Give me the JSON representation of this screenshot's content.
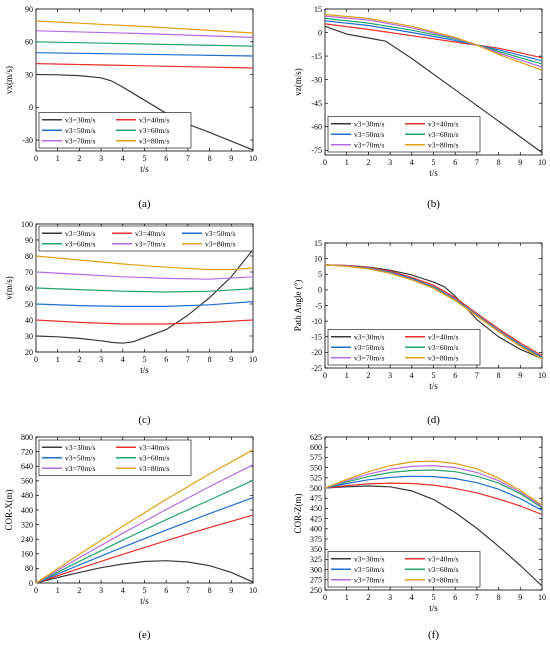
{
  "colors": {
    "v3=30m/s": "#3a3a3a",
    "v3=40m/s": "#e8312a",
    "v3=50m/s": "#1f6fd1",
    "v3=60m/s": "#22a36b",
    "v3=70m/s": "#b56be0",
    "v3=80m/s": "#e0a012"
  },
  "chart_data": [
    {
      "panel": "(a)",
      "type": "line",
      "xlabel": "t/s",
      "ylabel": "vx(m/s)",
      "xlim": [
        0,
        10
      ],
      "ylim": [
        -40,
        90
      ],
      "xticks": [
        0,
        1,
        2,
        3,
        4,
        5,
        6,
        7,
        8,
        9,
        10
      ],
      "yticks": [
        -30,
        0,
        30,
        60,
        90
      ],
      "legend_cols": 2,
      "legend_loc": "bottom-left",
      "series": [
        {
          "name": "v3=30m/s",
          "x": [
            0,
            1,
            2,
            3,
            3.5,
            4,
            5,
            6,
            7,
            8,
            9,
            10
          ],
          "y": [
            30,
            29.8,
            29,
            27,
            24,
            18.5,
            6.5,
            -5.5,
            -15.5,
            -23,
            -31,
            -39
          ]
        },
        {
          "name": "v3=40m/s",
          "x": [
            0,
            5,
            10
          ],
          "y": [
            40,
            38,
            36
          ]
        },
        {
          "name": "v3=50m/s",
          "x": [
            0,
            5,
            10
          ],
          "y": [
            50,
            48.5,
            47
          ]
        },
        {
          "name": "v3=60m/s",
          "x": [
            0,
            5,
            10
          ],
          "y": [
            60,
            58,
            56
          ]
        },
        {
          "name": "v3=70m/s",
          "x": [
            0,
            5,
            10
          ],
          "y": [
            70,
            67.5,
            64
          ]
        },
        {
          "name": "v3=80m/s",
          "x": [
            0,
            5,
            10
          ],
          "y": [
            79,
            74,
            68
          ]
        }
      ]
    },
    {
      "panel": "(b)",
      "type": "line",
      "xlabel": "t/s",
      "ylabel": "vz(m/s)",
      "xlim": [
        0,
        10
      ],
      "ylim": [
        -78,
        15
      ],
      "xticks": [
        0,
        1,
        2,
        3,
        4,
        5,
        6,
        7,
        8,
        9,
        10
      ],
      "yticks": [
        -75,
        -60,
        -45,
        -30,
        -15,
        0,
        15
      ],
      "legend_cols": 2,
      "legend_loc": "bottom-left",
      "series": [
        {
          "name": "v3=30m/s",
          "x": [
            0,
            1,
            2,
            2.8,
            4,
            6,
            8,
            10
          ],
          "y": [
            4,
            -1,
            -3.5,
            -5.5,
            -16.5,
            -36.5,
            -56.5,
            -76.5
          ]
        },
        {
          "name": "v3=40m/s",
          "x": [
            0,
            2,
            4,
            6,
            7,
            8,
            10
          ],
          "y": [
            5.5,
            2,
            -2,
            -6,
            -8,
            -10,
            -16
          ]
        },
        {
          "name": "v3=50m/s",
          "x": [
            0,
            2,
            4,
            6,
            7,
            8,
            10
          ],
          "y": [
            7.5,
            4.5,
            0,
            -5,
            -8,
            -11,
            -18
          ]
        },
        {
          "name": "v3=60m/s",
          "x": [
            0,
            2,
            4,
            6,
            7,
            8,
            10
          ],
          "y": [
            9,
            6,
            1.5,
            -4,
            -8,
            -12,
            -20
          ]
        },
        {
          "name": "v3=70m/s",
          "x": [
            0,
            2,
            4,
            6,
            7,
            8,
            10
          ],
          "y": [
            10.5,
            8,
            3,
            -3.5,
            -8,
            -13,
            -22
          ]
        },
        {
          "name": "v3=80m/s",
          "x": [
            0,
            2,
            4,
            6,
            7,
            8,
            10
          ],
          "y": [
            11.5,
            9,
            4,
            -3,
            -8,
            -14,
            -24
          ]
        }
      ]
    },
    {
      "panel": "(c)",
      "type": "line",
      "xlabel": "t/s",
      "ylabel": "v(m/s)",
      "xlim": [
        0,
        10
      ],
      "ylim": [
        20,
        100
      ],
      "xticks": [
        0,
        1,
        2,
        3,
        4,
        5,
        6,
        7,
        8,
        9,
        10
      ],
      "yticks": [
        20,
        30,
        40,
        50,
        60,
        70,
        80,
        90,
        100
      ],
      "legend_cols": 3,
      "legend_loc": "top",
      "series": [
        {
          "name": "v3=30m/s",
          "x": [
            0,
            1,
            2,
            3,
            3.5,
            4,
            4.5,
            5,
            6,
            7,
            8,
            9,
            10
          ],
          "y": [
            30,
            29.5,
            28.5,
            27,
            26,
            25.5,
            26.5,
            29,
            34,
            43,
            54,
            67,
            84
          ]
        },
        {
          "name": "v3=40m/s",
          "x": [
            0,
            2,
            4,
            6,
            8,
            10
          ],
          "y": [
            40,
            38.5,
            37.5,
            37.5,
            38.5,
            40
          ]
        },
        {
          "name": "v3=50m/s",
          "x": [
            0,
            2,
            4,
            6,
            8,
            10
          ],
          "y": [
            50,
            49,
            48.5,
            48.5,
            49.5,
            51.5
          ]
        },
        {
          "name": "v3=60m/s",
          "x": [
            0,
            2,
            4,
            6,
            8,
            10
          ],
          "y": [
            60,
            59,
            58,
            57.5,
            58,
            59.5
          ]
        },
        {
          "name": "v3=70m/s",
          "x": [
            0,
            2,
            4,
            6,
            8,
            10
          ],
          "y": [
            70,
            68.5,
            67,
            66,
            65.5,
            67
          ]
        },
        {
          "name": "v3=80m/s",
          "x": [
            0,
            2,
            4,
            6,
            8,
            9,
            10
          ],
          "y": [
            80,
            77.5,
            75,
            73,
            71.5,
            71.5,
            72.5
          ]
        }
      ]
    },
    {
      "panel": "(d)",
      "type": "line",
      "xlabel": "t/s",
      "ylabel": "Path Angle (°)",
      "xlim": [
        0,
        10
      ],
      "ylim": [
        -25,
        15
      ],
      "xticks": [
        0,
        1,
        2,
        3,
        4,
        5,
        6,
        7,
        8,
        9,
        10
      ],
      "yticks": [
        -25,
        -20,
        -15,
        -10,
        -5,
        0,
        5,
        10,
        15
      ],
      "legend_cols": 2,
      "legend_loc": "bottom-left",
      "series": [
        {
          "name": "v3=30m/s",
          "x": [
            0,
            1,
            2,
            3,
            4,
            5,
            5.5,
            6,
            7,
            8,
            9,
            10
          ],
          "y": [
            8,
            7.8,
            7.3,
            6.3,
            4.8,
            2.5,
            1,
            -2,
            -9.5,
            -15,
            -19,
            -22
          ]
        },
        {
          "name": "v3=40m/s",
          "x": [
            0,
            1,
            2,
            3,
            4,
            5,
            6,
            7,
            8,
            9,
            10
          ],
          "y": [
            8,
            7.8,
            7.2,
            6,
            4,
            1.5,
            -2.5,
            -7.5,
            -12.5,
            -17,
            -21
          ]
        },
        {
          "name": "v3=50m/s",
          "x": [
            0,
            1,
            2,
            3,
            4,
            5,
            6,
            7,
            8,
            9,
            10
          ],
          "y": [
            8,
            7.7,
            7,
            5.7,
            3.6,
            1,
            -3,
            -8,
            -13,
            -17.5,
            -21.5
          ]
        },
        {
          "name": "v3=60m/s",
          "x": [
            0,
            1,
            2,
            3,
            4,
            5,
            6,
            7,
            8,
            9,
            10
          ],
          "y": [
            8,
            7.6,
            6.9,
            5.5,
            3.4,
            0.8,
            -3.2,
            -8.2,
            -13.2,
            -17.8,
            -21.8
          ]
        },
        {
          "name": "v3=70m/s",
          "x": [
            0,
            1,
            2,
            3,
            4,
            5,
            6,
            7,
            8,
            9,
            10
          ],
          "y": [
            8,
            7.6,
            6.8,
            5.4,
            3.3,
            0.6,
            -3.3,
            -8.3,
            -13.3,
            -18,
            -22
          ]
        },
        {
          "name": "v3=80m/s",
          "x": [
            0,
            1,
            2,
            3,
            4,
            5,
            6,
            7,
            8,
            9,
            10
          ],
          "y": [
            8,
            7.5,
            6.7,
            5.3,
            3.2,
            0.5,
            -3.4,
            -8.4,
            -13.4,
            -18.1,
            -22.1
          ]
        }
      ]
    },
    {
      "panel": "(e)",
      "type": "line",
      "xlabel": "t/s",
      "ylabel": "COR-X(m)",
      "xlim": [
        0,
        10
      ],
      "ylim": [
        0,
        800
      ],
      "xticks": [
        0,
        1,
        2,
        3,
        4,
        5,
        6,
        7,
        8,
        9,
        10
      ],
      "yticks": [
        0,
        80,
        160,
        240,
        320,
        400,
        480,
        560,
        640,
        720,
        800
      ],
      "legend_cols": 2,
      "legend_loc": "top-left",
      "series": [
        {
          "name": "v3=30m/s",
          "x": [
            0,
            1,
            2,
            3,
            4,
            5,
            6,
            7,
            8,
            9,
            10
          ],
          "y": [
            0,
            30,
            58,
            84,
            104,
            118,
            122,
            115,
            95,
            58,
            5
          ]
        },
        {
          "name": "v3=40m/s",
          "x": [
            0,
            2,
            4,
            6,
            8,
            10
          ],
          "y": [
            0,
            80,
            157,
            232,
            304,
            372
          ]
        },
        {
          "name": "v3=50m/s",
          "x": [
            0,
            2,
            4,
            6,
            8,
            10
          ],
          "y": [
            0,
            99,
            196,
            290,
            380,
            468
          ]
        },
        {
          "name": "v3=60m/s",
          "x": [
            0,
            2,
            4,
            6,
            8,
            10
          ],
          "y": [
            0,
            119,
            235,
            347,
            455,
            562
          ]
        },
        {
          "name": "v3=70m/s",
          "x": [
            0,
            2,
            4,
            6,
            8,
            10
          ],
          "y": [
            0,
            139,
            273,
            403,
            528,
            648
          ]
        },
        {
          "name": "v3=80m/s",
          "x": [
            0,
            2,
            4,
            6,
            8,
            10
          ],
          "y": [
            0,
            158,
            311,
            458,
            598,
            730
          ]
        }
      ]
    },
    {
      "panel": "(f)",
      "type": "line",
      "xlabel": "t/s",
      "ylabel": "COR-Z(m)",
      "xlim": [
        0,
        10
      ],
      "ylim": [
        250,
        625
      ],
      "xticks": [
        0,
        1,
        2,
        3,
        4,
        5,
        6,
        7,
        8,
        9,
        10
      ],
      "yticks": [
        250,
        275,
        300,
        325,
        350,
        375,
        400,
        425,
        450,
        475,
        500,
        525,
        550,
        575,
        600,
        625
      ],
      "legend_cols": 2,
      "legend_loc": "bottom-left",
      "series": [
        {
          "name": "v3=30m/s",
          "x": [
            0,
            1,
            2,
            3,
            4,
            5,
            6,
            7,
            8,
            9,
            10
          ],
          "y": [
            500,
            503,
            505,
            503,
            493,
            472,
            440,
            401,
            357,
            310,
            260
          ]
        },
        {
          "name": "v3=40m/s",
          "x": [
            0,
            1,
            2,
            3,
            4,
            5,
            6,
            7,
            8,
            9,
            10
          ],
          "y": [
            500,
            506,
            510,
            512,
            511,
            507,
            499,
            488,
            473,
            456,
            435
          ]
        },
        {
          "name": "v3=50m/s",
          "x": [
            0,
            1,
            2,
            3,
            4,
            5,
            6,
            7,
            8,
            9,
            10
          ],
          "y": [
            500,
            511,
            520,
            526,
            529,
            528,
            523,
            513,
            497,
            474,
            445
          ]
        },
        {
          "name": "v3=60m/s",
          "x": [
            0,
            1,
            2,
            3,
            4,
            5,
            6,
            7,
            8,
            9,
            10
          ],
          "y": [
            500,
            515,
            528,
            538,
            543,
            544,
            540,
            529,
            512,
            486,
            452
          ]
        },
        {
          "name": "v3=70m/s",
          "x": [
            0,
            1,
            2,
            3,
            4,
            5,
            6,
            7,
            8,
            9,
            10
          ],
          "y": [
            500,
            518,
            534,
            546,
            553,
            555,
            550,
            538,
            518,
            490,
            455
          ]
        },
        {
          "name": "v3=80m/s",
          "x": [
            0,
            1,
            2,
            3,
            4,
            5,
            6,
            7,
            8,
            9,
            10
          ],
          "y": [
            500,
            521,
            540,
            555,
            564,
            566,
            560,
            547,
            524,
            494,
            458
          ]
        }
      ]
    }
  ]
}
